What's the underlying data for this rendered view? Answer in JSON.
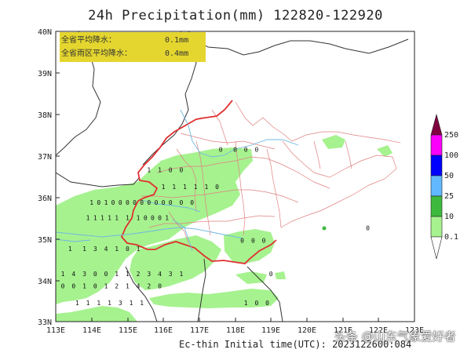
{
  "title": "24h Precipitation(mm) 122820-122920",
  "footer": "Ec-thin  Initial time(UTC): 2023122600:084",
  "watermark": "头条 @山东气象爱好者",
  "info_box": {
    "row1_label": "全省平均降水：",
    "row1_value": "0.1mm",
    "row2_label": "全省雨区平均降水：",
    "row2_value": "0.4mm",
    "bg_color": "#e4d62e"
  },
  "lat_labels": [
    "40N",
    "39N",
    "38N",
    "37N",
    "36N",
    "35N",
    "34N",
    "33N"
  ],
  "lon_labels": [
    "113E",
    "114E",
    "115E",
    "116E",
    "117E",
    "118E",
    "119E",
    "120E",
    "121E",
    "122E",
    "123E"
  ],
  "legend": {
    "levels": [
      "0.1",
      "10",
      "25",
      "50",
      "100",
      "250"
    ],
    "colors": [
      "#a6f28f",
      "#3dba3d",
      "#61b8ff",
      "#0000ff",
      "#fa00fa",
      "#800040"
    ]
  },
  "colors": {
    "land_rain": "#a6f28f",
    "province_border": "#e03030",
    "county_border": "#e08080",
    "river": "#6fb8e0",
    "country_border": "#333333"
  },
  "station_values": [
    {
      "x": 114.0,
      "y": 35.82,
      "v": "1"
    },
    {
      "x": 114.2,
      "y": 35.82,
      "v": "0"
    },
    {
      "x": 114.4,
      "y": 35.82,
      "v": "1"
    },
    {
      "x": 114.6,
      "y": 35.82,
      "v": "0"
    },
    {
      "x": 114.8,
      "y": 35.82,
      "v": "0"
    },
    {
      "x": 115.0,
      "y": 35.82,
      "v": "0"
    },
    {
      "x": 115.2,
      "y": 35.82,
      "v": "0"
    },
    {
      "x": 115.4,
      "y": 35.82,
      "v": "0"
    },
    {
      "x": 115.6,
      "y": 35.82,
      "v": "0"
    },
    {
      "x": 115.8,
      "y": 35.82,
      "v": "0"
    },
    {
      "x": 116.0,
      "y": 35.82,
      "v": "0"
    },
    {
      "x": 116.2,
      "y": 35.82,
      "v": "0"
    },
    {
      "x": 116.5,
      "y": 35.82,
      "v": "0"
    },
    {
      "x": 116.8,
      "y": 35.82,
      "v": "0"
    },
    {
      "x": 113.9,
      "y": 35.45,
      "v": "1"
    },
    {
      "x": 114.1,
      "y": 35.45,
      "v": "1"
    },
    {
      "x": 114.3,
      "y": 35.45,
      "v": "1"
    },
    {
      "x": 114.5,
      "y": 35.45,
      "v": "1"
    },
    {
      "x": 114.7,
      "y": 35.45,
      "v": "1"
    },
    {
      "x": 115.0,
      "y": 35.45,
      "v": "1"
    },
    {
      "x": 115.3,
      "y": 35.45,
      "v": "1"
    },
    {
      "x": 115.5,
      "y": 35.45,
      "v": "0"
    },
    {
      "x": 115.7,
      "y": 35.45,
      "v": "0"
    },
    {
      "x": 115.9,
      "y": 35.45,
      "v": "0"
    },
    {
      "x": 116.1,
      "y": 35.45,
      "v": "1"
    },
    {
      "x": 113.4,
      "y": 34.7,
      "v": "1"
    },
    {
      "x": 113.8,
      "y": 34.7,
      "v": "1"
    },
    {
      "x": 114.1,
      "y": 34.7,
      "v": "3"
    },
    {
      "x": 114.4,
      "y": 34.7,
      "v": "4"
    },
    {
      "x": 114.7,
      "y": 34.7,
      "v": "1"
    },
    {
      "x": 115.0,
      "y": 34.7,
      "v": "0"
    },
    {
      "x": 115.3,
      "y": 34.7,
      "v": "1"
    },
    {
      "x": 113.2,
      "y": 34.1,
      "v": "1"
    },
    {
      "x": 113.5,
      "y": 34.1,
      "v": "4"
    },
    {
      "x": 113.8,
      "y": 34.1,
      "v": "3"
    },
    {
      "x": 114.1,
      "y": 34.1,
      "v": "0"
    },
    {
      "x": 114.4,
      "y": 34.1,
      "v": "0"
    },
    {
      "x": 114.7,
      "y": 34.1,
      "v": "1"
    },
    {
      "x": 115.0,
      "y": 34.1,
      "v": "1"
    },
    {
      "x": 115.3,
      "y": 34.1,
      "v": "2"
    },
    {
      "x": 115.6,
      "y": 34.1,
      "v": "3"
    },
    {
      "x": 115.9,
      "y": 34.1,
      "v": "4"
    },
    {
      "x": 116.2,
      "y": 34.1,
      "v": "3"
    },
    {
      "x": 116.5,
      "y": 34.1,
      "v": "1"
    },
    {
      "x": 113.2,
      "y": 33.8,
      "v": "0"
    },
    {
      "x": 113.5,
      "y": 33.8,
      "v": "0"
    },
    {
      "x": 113.8,
      "y": 33.8,
      "v": "1"
    },
    {
      "x": 114.1,
      "y": 33.8,
      "v": "0"
    },
    {
      "x": 114.4,
      "y": 33.8,
      "v": "1"
    },
    {
      "x": 114.7,
      "y": 33.8,
      "v": "2"
    },
    {
      "x": 115.0,
      "y": 33.8,
      "v": "1"
    },
    {
      "x": 115.3,
      "y": 33.8,
      "v": "4"
    },
    {
      "x": 115.6,
      "y": 33.8,
      "v": "2"
    },
    {
      "x": 115.9,
      "y": 33.8,
      "v": "0"
    },
    {
      "x": 113.6,
      "y": 33.4,
      "v": "1"
    },
    {
      "x": 113.9,
      "y": 33.4,
      "v": "1"
    },
    {
      "x": 114.2,
      "y": 33.4,
      "v": "1"
    },
    {
      "x": 114.5,
      "y": 33.4,
      "v": "1"
    },
    {
      "x": 114.8,
      "y": 33.4,
      "v": "3"
    },
    {
      "x": 115.1,
      "y": 33.4,
      "v": "1"
    },
    {
      "x": 115.4,
      "y": 33.4,
      "v": "1"
    },
    {
      "x": 118.3,
      "y": 33.4,
      "v": "1"
    },
    {
      "x": 118.6,
      "y": 33.4,
      "v": "0"
    },
    {
      "x": 118.9,
      "y": 33.4,
      "v": "0"
    },
    {
      "x": 115.6,
      "y": 36.6,
      "v": "1"
    },
    {
      "x": 115.9,
      "y": 36.6,
      "v": "1"
    },
    {
      "x": 116.2,
      "y": 36.6,
      "v": "0"
    },
    {
      "x": 116.5,
      "y": 36.6,
      "v": "0"
    },
    {
      "x": 116.0,
      "y": 36.2,
      "v": "1"
    },
    {
      "x": 116.3,
      "y": 36.2,
      "v": "1"
    },
    {
      "x": 116.6,
      "y": 36.2,
      "v": "1"
    },
    {
      "x": 116.9,
      "y": 36.2,
      "v": "1"
    },
    {
      "x": 117.2,
      "y": 36.2,
      "v": "1"
    },
    {
      "x": 117.5,
      "y": 36.2,
      "v": "0"
    },
    {
      "x": 117.6,
      "y": 37.1,
      "v": "0"
    },
    {
      "x": 118.0,
      "y": 37.1,
      "v": "0"
    },
    {
      "x": 118.3,
      "y": 37.1,
      "v": "0"
    },
    {
      "x": 118.6,
      "y": 37.1,
      "v": "0"
    },
    {
      "x": 118.2,
      "y": 34.9,
      "v": "0"
    },
    {
      "x": 118.5,
      "y": 34.9,
      "v": "0"
    },
    {
      "x": 118.8,
      "y": 34.9,
      "v": "0"
    },
    {
      "x": 119.0,
      "y": 34.1,
      "v": "0"
    },
    {
      "x": 121.7,
      "y": 35.2,
      "v": "0"
    }
  ]
}
